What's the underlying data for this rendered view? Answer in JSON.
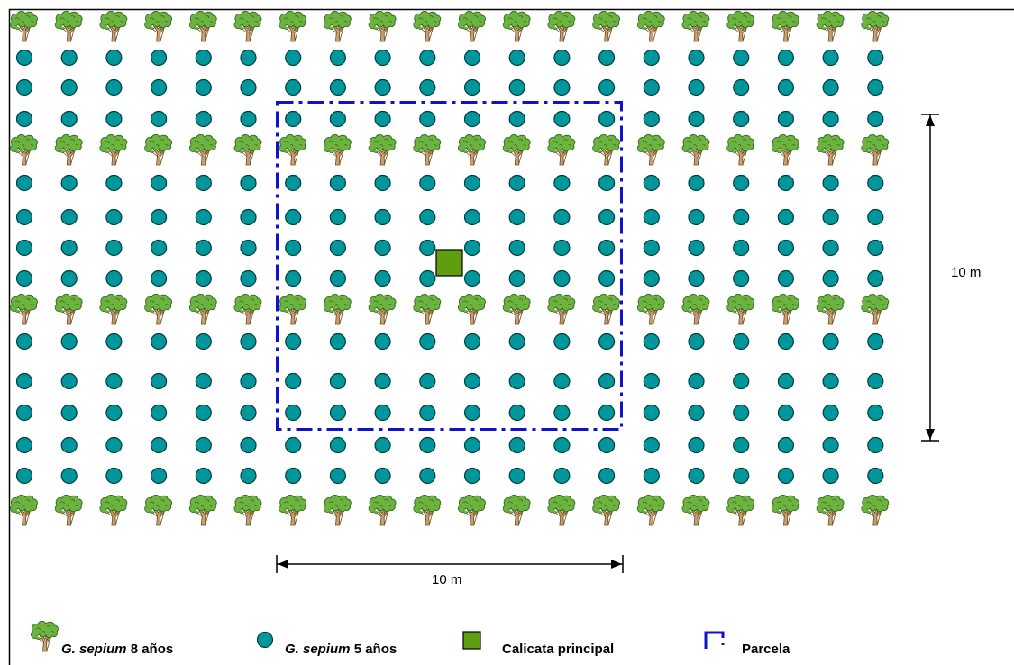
{
  "diagram": {
    "colors": {
      "border": "#000000",
      "circle_fill": "#00979C",
      "circle_stroke": "#003C3C",
      "tree_leaf": "#6DB33F",
      "tree_leaf_dark": "#2F6B1E",
      "tree_trunk": "#C8A26E",
      "pit_fill": "#5F9E0F",
      "plot_border": "#1010D0",
      "dimension_line": "#000000"
    },
    "grid": {
      "columns": 20,
      "rows": 16,
      "tree_rows": [
        1,
        5,
        10,
        16
      ],
      "pit_position": "center"
    },
    "dimensions": {
      "vertical_label": "10 m",
      "horizontal_label": "10 m"
    },
    "legend": {
      "tree": {
        "icon": "tree-icon",
        "species": "G. sepium",
        "age": "8 años"
      },
      "circle": {
        "icon": "circle-icon",
        "species": "G. sepium",
        "age": "5 años"
      },
      "pit": {
        "icon": "square-icon",
        "label": "Calicata principal"
      },
      "plot": {
        "icon": "dashed-bracket-icon",
        "label": "Parcela"
      }
    }
  }
}
